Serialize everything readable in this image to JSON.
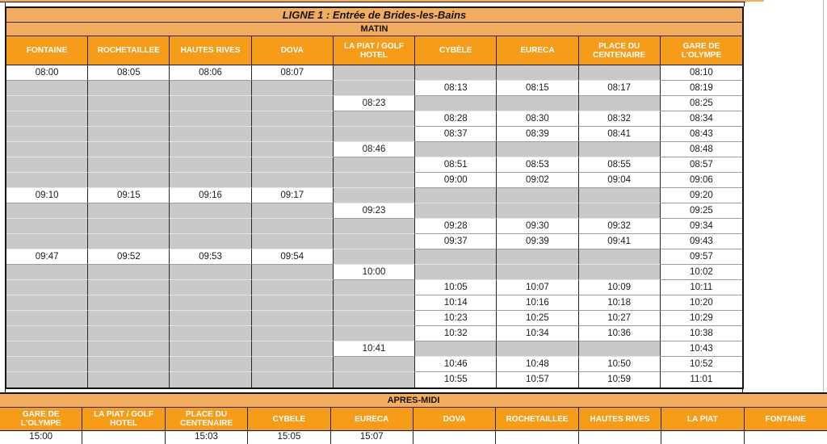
{
  "page": {
    "title_line": "LIGNE 1 : Entrée de Brides-les-Bains",
    "matin_label": "MATIN",
    "apres_midi_label": "APRES-MIDI"
  },
  "colors": {
    "header_orange": "#f79c18",
    "banner_orange": "#f2ad60",
    "no_stop_gray": "#c9c9c9",
    "grid_black": "#141414"
  },
  "matin": {
    "columns": [
      "FONTAINE",
      "ROCHETAILLEE",
      "HAUTES RIVES",
      "DOVA",
      "LA PIAT / GOLF HOTEL",
      "CYBÈLE",
      "EURECA",
      "PLACE DU CENTENAIRE",
      "GARE DE L'OLYMPE"
    ],
    "rows": [
      [
        "08:00",
        "08:05",
        "08:06",
        "08:07",
        null,
        null,
        null,
        null,
        "08:10"
      ],
      [
        null,
        null,
        null,
        null,
        null,
        "08:13",
        "08:15",
        "08:17",
        "08:19"
      ],
      [
        null,
        null,
        null,
        null,
        "08:23",
        null,
        null,
        null,
        "08:25"
      ],
      [
        null,
        null,
        null,
        null,
        null,
        "08:28",
        "08:30",
        "08:32",
        "08:34"
      ],
      [
        null,
        null,
        null,
        null,
        null,
        "08:37",
        "08:39",
        "08:41",
        "08:43"
      ],
      [
        null,
        null,
        null,
        null,
        "08:46",
        null,
        null,
        null,
        "08:48"
      ],
      [
        null,
        null,
        null,
        null,
        null,
        "08:51",
        "08:53",
        "08:55",
        "08:57"
      ],
      [
        null,
        null,
        null,
        null,
        null,
        "09:00",
        "09:02",
        "09:04",
        "09:06"
      ],
      [
        "09:10",
        "09:15",
        "09:16",
        "09:17",
        null,
        null,
        null,
        null,
        "09:20"
      ],
      [
        null,
        null,
        null,
        null,
        "09:23",
        null,
        null,
        null,
        "09:25"
      ],
      [
        null,
        null,
        null,
        null,
        null,
        "09:28",
        "09:30",
        "09:32",
        "09:34"
      ],
      [
        null,
        null,
        null,
        null,
        null,
        "09:37",
        "09:39",
        "09:41",
        "09:43"
      ],
      [
        "09:47",
        "09:52",
        "09:53",
        "09:54",
        null,
        null,
        null,
        null,
        "09:57"
      ],
      [
        null,
        null,
        null,
        null,
        "10:00",
        null,
        null,
        null,
        "10:02"
      ],
      [
        null,
        null,
        null,
        null,
        null,
        "10:05",
        "10:07",
        "10:09",
        "10:11"
      ],
      [
        null,
        null,
        null,
        null,
        null,
        "10:14",
        "10:16",
        "10:18",
        "10:20"
      ],
      [
        null,
        null,
        null,
        null,
        null,
        "10:23",
        "10:25",
        "10:27",
        "10:29"
      ],
      [
        null,
        null,
        null,
        null,
        null,
        "10:32",
        "10:34",
        "10:36",
        "10:38"
      ],
      [
        null,
        null,
        null,
        null,
        "10:41",
        null,
        null,
        null,
        "10:43"
      ],
      [
        null,
        null,
        null,
        null,
        null,
        "10:46",
        "10:48",
        "10:50",
        "10:52"
      ],
      [
        null,
        null,
        null,
        null,
        null,
        "10:55",
        "10:57",
        "10:59",
        "11:01"
      ]
    ]
  },
  "apres_midi": {
    "columns": [
      "GARE DE L'OLYMPE",
      "LA PIAT / GOLF HOTEL",
      "PLACE DU CENTENAIRE",
      "CYBELE",
      "EURECA",
      "DOVA",
      "ROCHETAILLEE",
      "HAUTES RIVES",
      "LA PIAT",
      "FONTAINE"
    ],
    "rows": [
      [
        "15:00",
        "",
        "15:03",
        "15:05",
        "15:07",
        "",
        "",
        "",
        "",
        ""
      ]
    ]
  }
}
